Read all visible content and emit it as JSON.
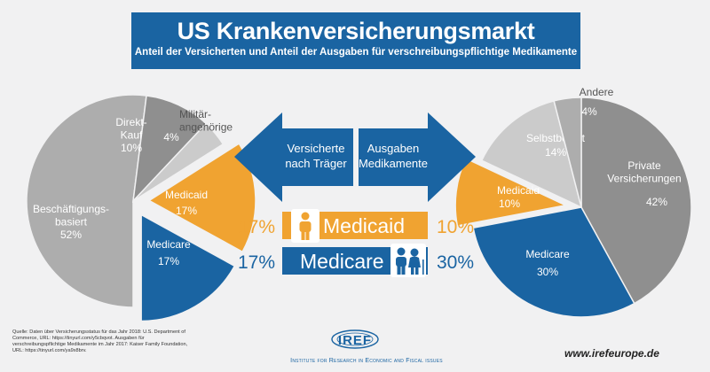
{
  "title": "US Krankenversicherungsmarkt",
  "subtitle": "Anteil der Versicherten und Anteil der Ausgaben für verschreibungspflichtige Medikamente",
  "colors": {
    "blue": "#1a64a2",
    "orange": "#f0a331",
    "gray_dark": "#8f8f8f",
    "gray_mid": "#adadad",
    "gray_light": "#cbcbcb",
    "background": "#f1f1f2"
  },
  "arrows": {
    "left_label": "Versicherte nach Träger",
    "right_label": "Ausgaben Medikamente"
  },
  "comparison": {
    "medicaid": {
      "label": "Medicaid",
      "left_value": "17%",
      "right_value": "10%",
      "icon": "person-icon"
    },
    "medicare": {
      "label": "Medicare",
      "left_value": "17%",
      "right_value": "30%",
      "icon": "elderly-couple-icon"
    }
  },
  "chart_data": [
    {
      "type": "pie",
      "slices": [
        {
          "label": "Beschäftigungs-basiert",
          "value": 52,
          "value_label": "52%",
          "color": "#adadad"
        },
        {
          "label": "Direkt-Kauf",
          "value": 10,
          "value_label": "10%",
          "color": "#8f8f8f"
        },
        {
          "label": "Militär-angehörige",
          "value": 4,
          "value_label": "4%",
          "color": "#cbcbcb"
        },
        {
          "label": "Medicaid",
          "value": 17,
          "value_label": "17%",
          "color": "#f0a331"
        },
        {
          "label": "Medicare",
          "value": 17,
          "value_label": "17%",
          "color": "#1a64a2"
        }
      ]
    },
    {
      "type": "pie",
      "slices": [
        {
          "label": "Private Versicherungen",
          "value": 42,
          "value_label": "42%",
          "color": "#8f8f8f"
        },
        {
          "label": "Medicare",
          "value": 30,
          "value_label": "30%",
          "color": "#1a64a2"
        },
        {
          "label": "Medicaid",
          "value": 10,
          "value_label": "10%",
          "color": "#f0a331"
        },
        {
          "label": "Selbstbehalt",
          "value": 14,
          "value_label": "14%",
          "color": "#cbcbcb"
        },
        {
          "label": "Andere",
          "value": 4,
          "value_label": "4%",
          "color": "#adadad"
        }
      ]
    }
  ],
  "footer": {
    "source": "Quelle: Daten über Versicherungsstatus für das Jahr 2018: U.S. Department of Commerce, URL: https://tinyurl.com/y5cbqvot. Ausgaben für verschreibungspflichtige Medikamente im Jahr 2017: Kaiser Family Foundation, URL: https://tinyurl.com/ya9x8brv.",
    "logo_text": "IREF",
    "institute": "Institute for Research in Economic and Fiscal issues",
    "website": "www.irefeurope.de"
  }
}
